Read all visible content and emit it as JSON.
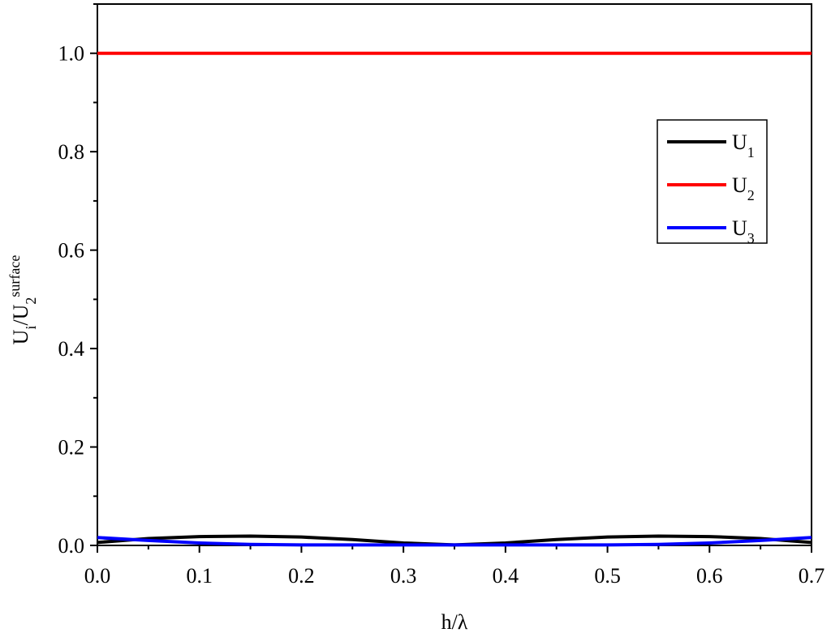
{
  "chart_data": {
    "type": "line",
    "xlabel": "h/λ",
    "ylabel": [
      {
        "text": "U"
      },
      {
        "text": "i",
        "shift": "sub"
      },
      {
        "text": "/U"
      },
      {
        "text": "2",
        "shift": "sub"
      },
      {
        "text": "surface",
        "shift": "super"
      }
    ],
    "x": [
      0,
      0.05,
      0.1,
      0.15,
      0.2,
      0.25,
      0.3,
      0.35,
      0.4,
      0.45,
      0.5,
      0.55,
      0.6,
      0.65,
      0.7
    ],
    "series": [
      {
        "name": "U",
        "subscript": "1",
        "color": "#000000",
        "values": [
          0.006,
          0.014,
          0.018,
          0.019,
          0.017,
          0.012,
          0.005,
          0.001,
          0.005,
          0.012,
          0.017,
          0.019,
          0.018,
          0.014,
          0.006
        ]
      },
      {
        "name": "U",
        "subscript": "2",
        "color": "#ff0000",
        "values": [
          1,
          1,
          1,
          1,
          1,
          1,
          1,
          1,
          1,
          1,
          1,
          1,
          1,
          1,
          1
        ]
      },
      {
        "name": "U",
        "subscript": "3",
        "color": "#0000ff",
        "values": [
          0.016,
          0.01,
          0.005,
          0.002,
          0.001,
          0.001,
          0.001,
          0.001,
          0.001,
          0.001,
          0.001,
          0.002,
          0.005,
          0.01,
          0.016
        ]
      }
    ],
    "xlim": [
      0,
      0.7
    ],
    "ylim": [
      0,
      1.1
    ],
    "xticks": [
      {
        "value": 0,
        "label": "0.0"
      },
      0.1,
      0.2,
      0.3,
      0.4,
      0.5,
      0.6,
      0.7
    ],
    "yticks": [
      {
        "value": 0,
        "label": "0.0"
      },
      0.2,
      0.4,
      0.6,
      0.8,
      {
        "value": 1,
        "label": "1.0"
      }
    ],
    "xminorticks": [
      0.05,
      0.15,
      0.25,
      0.35,
      0.45,
      0.55,
      0.65
    ],
    "yminorticks": [
      0.1,
      0.3,
      0.5,
      0.7,
      0.9,
      1.1
    ],
    "grid": false
  }
}
